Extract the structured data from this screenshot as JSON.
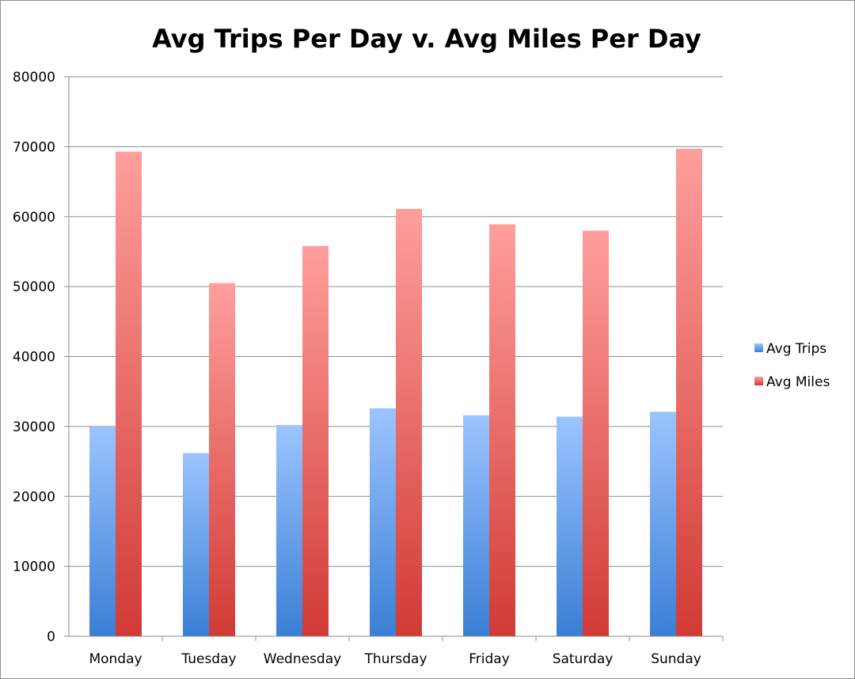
{
  "chart_data": {
    "type": "bar",
    "title": "Avg Trips Per Day v. Avg Miles Per Day",
    "xlabel": "",
    "ylabel": "",
    "categories": [
      "Monday",
      "Tuesday",
      "Wednesday",
      "Thursday",
      "Friday",
      "Saturday",
      "Sunday"
    ],
    "series": [
      {
        "name": "Avg Trips",
        "values": [
          30000,
          26200,
          30200,
          32600,
          31600,
          31400,
          32100
        ],
        "color_top": "#9cc4ff",
        "color_bottom": "#3a7fd5"
      },
      {
        "name": "Avg Miles",
        "values": [
          69300,
          50500,
          55800,
          61100,
          58900,
          58000,
          69700
        ],
        "color_top": "#ff9f9c",
        "color_bottom": "#d13a35"
      }
    ],
    "ylim": [
      0,
      80000
    ],
    "yticks": [
      "0",
      "10000",
      "20000",
      "30000",
      "40000",
      "50000",
      "60000",
      "70000",
      "80000"
    ],
    "grid": true,
    "legend_position": "right"
  }
}
